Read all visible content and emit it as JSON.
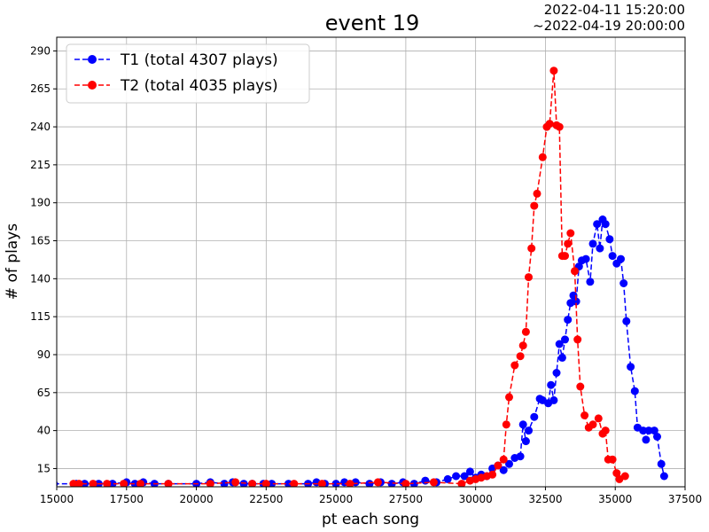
{
  "chart_data": {
    "type": "line",
    "title": "event 19",
    "date_range": [
      "2022-04-11 15:20:00",
      "~2022-04-19 20:00:00"
    ],
    "xlabel": "pt each song",
    "ylabel": "# of plays",
    "xlim": [
      15000,
      37500
    ],
    "ylim": [
      3,
      299
    ],
    "xticks": [
      15000,
      17500,
      20000,
      22500,
      25000,
      27500,
      30000,
      32500,
      35000,
      37500
    ],
    "yticks": [
      15,
      40,
      65,
      90,
      115,
      140,
      165,
      190,
      215,
      240,
      265,
      290
    ],
    "grid": true,
    "legend_position": "top-left",
    "series": [
      {
        "name": "T1 (total 4307 plays)",
        "color": "#0000ff",
        "linestyle": "dashed",
        "marker": "circle",
        "points": [
          [
            14900,
            5
          ],
          [
            15700,
            5
          ],
          [
            16000,
            5
          ],
          [
            16500,
            5
          ],
          [
            17000,
            5
          ],
          [
            17500,
            6
          ],
          [
            17800,
            5
          ],
          [
            18100,
            6
          ],
          [
            18500,
            5
          ],
          [
            19000,
            5
          ],
          [
            20000,
            5
          ],
          [
            20500,
            6
          ],
          [
            21000,
            5
          ],
          [
            21300,
            6
          ],
          [
            21700,
            5
          ],
          [
            22000,
            5
          ],
          [
            22400,
            5
          ],
          [
            22700,
            5
          ],
          [
            23300,
            5
          ],
          [
            24000,
            5
          ],
          [
            24300,
            6
          ],
          [
            24600,
            5
          ],
          [
            25000,
            5
          ],
          [
            25300,
            6
          ],
          [
            25700,
            6
          ],
          [
            26200,
            5
          ],
          [
            26600,
            6
          ],
          [
            27000,
            5
          ],
          [
            27400,
            6
          ],
          [
            27800,
            5
          ],
          [
            28200,
            7
          ],
          [
            28600,
            6
          ],
          [
            29000,
            8
          ],
          [
            29300,
            10
          ],
          [
            29600,
            10
          ],
          [
            29800,
            13
          ],
          [
            30000,
            9
          ],
          [
            30200,
            11
          ],
          [
            30400,
            10
          ],
          [
            30600,
            15
          ],
          [
            30800,
            17
          ],
          [
            31000,
            14
          ],
          [
            31200,
            18
          ],
          [
            31400,
            22
          ],
          [
            31600,
            23
          ],
          [
            31700,
            44
          ],
          [
            31800,
            33
          ],
          [
            31900,
            40
          ],
          [
            32100,
            49
          ],
          [
            32300,
            61
          ],
          [
            32400,
            60
          ],
          [
            32600,
            58
          ],
          [
            32700,
            70
          ],
          [
            32800,
            60
          ],
          [
            32900,
            78
          ],
          [
            33000,
            97
          ],
          [
            33100,
            88
          ],
          [
            33200,
            100
          ],
          [
            33300,
            113
          ],
          [
            33400,
            124
          ],
          [
            33500,
            129
          ],
          [
            33600,
            125
          ],
          [
            33700,
            148
          ],
          [
            33800,
            152
          ],
          [
            33950,
            153
          ],
          [
            34100,
            138
          ],
          [
            34200,
            163
          ],
          [
            34350,
            176
          ],
          [
            34450,
            160
          ],
          [
            34550,
            179
          ],
          [
            34650,
            176
          ],
          [
            34800,
            166
          ],
          [
            34900,
            155
          ],
          [
            35050,
            150
          ],
          [
            35200,
            153
          ],
          [
            35300,
            137
          ],
          [
            35400,
            112
          ],
          [
            35550,
            82
          ],
          [
            35700,
            66
          ],
          [
            35800,
            42
          ],
          [
            36000,
            40
          ],
          [
            36100,
            34
          ],
          [
            36200,
            40
          ],
          [
            36400,
            40
          ],
          [
            36500,
            36
          ],
          [
            36650,
            18
          ],
          [
            36750,
            10
          ]
        ]
      },
      {
        "name": "T2 (total 4035 plays)",
        "color": "#ff0000",
        "linestyle": "dashed",
        "marker": "circle",
        "points": [
          [
            15600,
            5
          ],
          [
            15800,
            5
          ],
          [
            16300,
            5
          ],
          [
            16800,
            5
          ],
          [
            17400,
            5
          ],
          [
            18000,
            5
          ],
          [
            19000,
            5
          ],
          [
            20500,
            5
          ],
          [
            21400,
            6
          ],
          [
            22000,
            5
          ],
          [
            22500,
            5
          ],
          [
            23500,
            5
          ],
          [
            24500,
            5
          ],
          [
            25500,
            5
          ],
          [
            26500,
            6
          ],
          [
            27500,
            5
          ],
          [
            28500,
            6
          ],
          [
            29500,
            5
          ],
          [
            29800,
            7
          ],
          [
            30000,
            8
          ],
          [
            30200,
            9
          ],
          [
            30400,
            10
          ],
          [
            30600,
            11
          ],
          [
            30800,
            17
          ],
          [
            31000,
            21
          ],
          [
            31100,
            44
          ],
          [
            31200,
            62
          ],
          [
            31400,
            83
          ],
          [
            31600,
            89
          ],
          [
            31700,
            96
          ],
          [
            31800,
            105
          ],
          [
            31900,
            141
          ],
          [
            32000,
            160
          ],
          [
            32100,
            188
          ],
          [
            32200,
            196
          ],
          [
            32400,
            220
          ],
          [
            32550,
            240
          ],
          [
            32650,
            242
          ],
          [
            32800,
            277
          ],
          [
            32900,
            241
          ],
          [
            33000,
            240
          ],
          [
            33100,
            155
          ],
          [
            33200,
            155
          ],
          [
            33300,
            163
          ],
          [
            33400,
            170
          ],
          [
            33550,
            145
          ],
          [
            33650,
            100
          ],
          [
            33750,
            69
          ],
          [
            33900,
            50
          ],
          [
            34050,
            42
          ],
          [
            34200,
            44
          ],
          [
            34400,
            48
          ],
          [
            34550,
            38
          ],
          [
            34650,
            40
          ],
          [
            34750,
            21
          ],
          [
            34900,
            21
          ],
          [
            35050,
            12
          ],
          [
            35150,
            8
          ],
          [
            35350,
            10
          ]
        ]
      }
    ]
  }
}
